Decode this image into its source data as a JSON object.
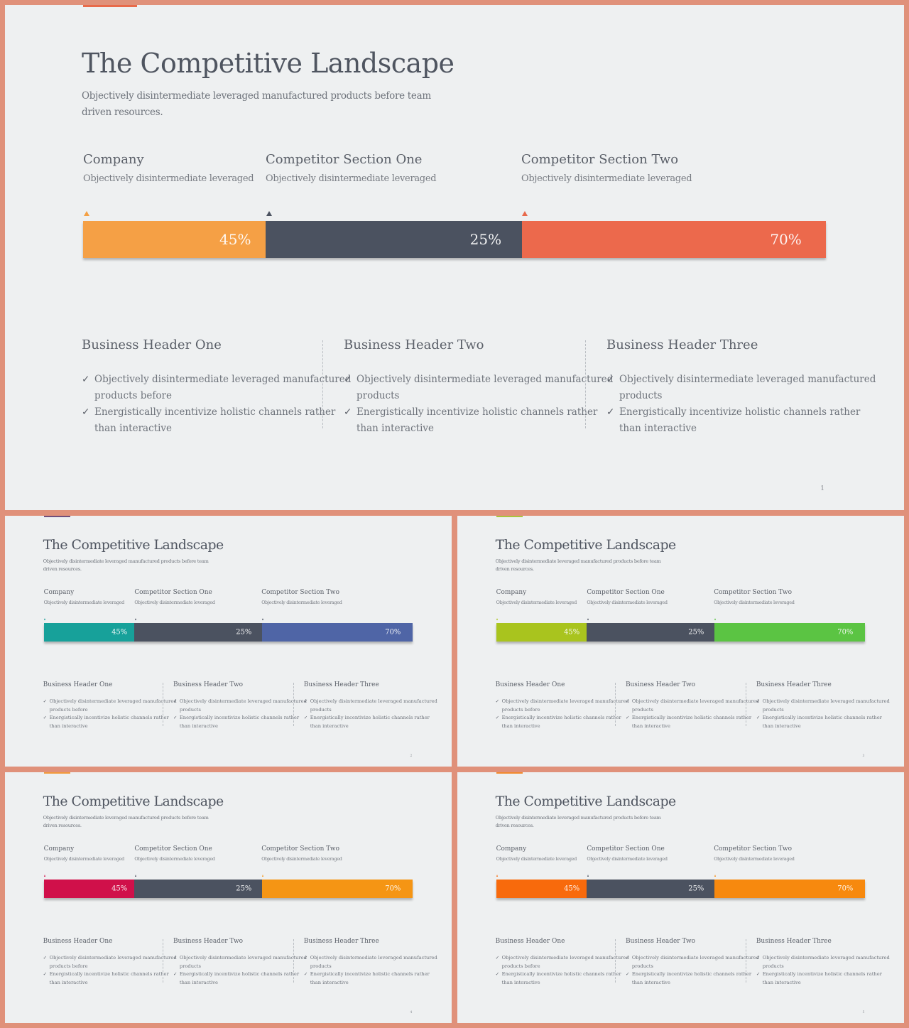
{
  "slides": [
    {
      "name": "slide-1",
      "accent": "#e86a4a",
      "title": "The Competitive Landscape",
      "subtitle_line1": "Objectively disintermediate leveraged manufactured products before team",
      "subtitle_line2": "driven resources.",
      "columns": [
        {
          "heading": "Company",
          "text": "Objectively disintermediate leveraged",
          "marker_color": "#f4a044"
        },
        {
          "heading": "Competitor Section One",
          "text": "Objectively disintermediate leveraged",
          "marker_color": "#4b5260"
        },
        {
          "heading": "Competitor Section Two",
          "text": "Objectively disintermediate leveraged",
          "marker_color": "#e8694b"
        }
      ],
      "bar": [
        {
          "label": "45%",
          "color": "#f5a045"
        },
        {
          "label": "25%",
          "color": "#4b5260"
        },
        {
          "label": "70%",
          "color": "#ec694c"
        }
      ],
      "business": [
        {
          "heading": "Business Header One",
          "item1_l1": "Objectively disintermediate leveraged manufactured",
          "item1_l2": "products before",
          "item2_l1": "Energistically incentivize holistic channels rather",
          "item2_l2": "than interactive"
        },
        {
          "heading": "Business Header Two",
          "item1_l1": "Objectively disintermediate leveraged manufactured",
          "item1_l2": "products",
          "item2_l1": "Energistically incentivize holistic channels rather",
          "item2_l2": "than interactive"
        },
        {
          "heading": "Business Header Three",
          "item1_l1": "Objectively disintermediate leveraged manufactured",
          "item1_l2": "products",
          "item2_l1": "Energistically incentivize holistic channels rather",
          "item2_l2": "than interactive"
        }
      ],
      "page_number": "1"
    },
    {
      "name": "slide-2",
      "accent": "#6f4f7c",
      "title": "The Competitive Landscape",
      "subtitle_line1": "Objectively disintermediate leveraged manufactured products before team",
      "subtitle_line2": "driven resources.",
      "columns": [
        {
          "heading": "Company",
          "text": "Objectively disintermediate leveraged",
          "marker_color": "#1a9e96"
        },
        {
          "heading": "Competitor Section One",
          "text": "Objectively disintermediate leveraged",
          "marker_color": "#4b5260"
        },
        {
          "heading": "Competitor Section Two",
          "text": "Objectively disintermediate leveraged",
          "marker_color": "#4b5260"
        }
      ],
      "bar": [
        {
          "label": "45%",
          "color": "#17a19a"
        },
        {
          "label": "25%",
          "color": "#4b5260"
        },
        {
          "label": "70%",
          "color": "#4f65a6"
        }
      ],
      "business": [
        {
          "heading": "Business Header One",
          "item1_l1": "Objectively disintermediate leveraged manufactured",
          "item1_l2": "products before",
          "item2_l1": "Energistically incentivize holistic channels rather",
          "item2_l2": "than interactive"
        },
        {
          "heading": "Business Header Two",
          "item1_l1": "Objectively disintermediate leveraged manufactured",
          "item1_l2": "products",
          "item2_l1": "Energistically incentivize holistic channels rather",
          "item2_l2": "than interactive"
        },
        {
          "heading": "Business Header Three",
          "item1_l1": "Objectively disintermediate leveraged manufactured",
          "item1_l2": "products",
          "item2_l1": "Energistically incentivize holistic channels rather",
          "item2_l2": "than interactive"
        }
      ],
      "page_number": "2"
    },
    {
      "name": "slide-3",
      "accent": "#a9c43c",
      "title": "The Competitive Landscape",
      "subtitle_line1": "Objectively disintermediate leveraged manufactured products before team",
      "subtitle_line2": "driven resources.",
      "columns": [
        {
          "heading": "Company",
          "text": "Objectively disintermediate leveraged",
          "marker_color": "#a9c41e"
        },
        {
          "heading": "Competitor Section One",
          "text": "Objectively disintermediate leveraged",
          "marker_color": "#4b5260"
        },
        {
          "heading": "Competitor Section Two",
          "text": "Objectively disintermediate leveraged",
          "marker_color": "#5bc443"
        }
      ],
      "bar": [
        {
          "label": "45%",
          "color": "#a9c41e"
        },
        {
          "label": "25%",
          "color": "#4b5260"
        },
        {
          "label": "70%",
          "color": "#5bc443"
        }
      ],
      "business": [
        {
          "heading": "Business Header One",
          "item1_l1": "Objectively disintermediate leveraged manufactured",
          "item1_l2": "products before",
          "item2_l1": "Energistically incentivize holistic channels rather",
          "item2_l2": "than interactive"
        },
        {
          "heading": "Business Header Two",
          "item1_l1": "Objectively disintermediate leveraged manufactured",
          "item1_l2": "products",
          "item2_l1": "Energistically incentivize holistic channels rather",
          "item2_l2": "than interactive"
        },
        {
          "heading": "Business Header Three",
          "item1_l1": "Objectively disintermediate leveraged manufactured",
          "item1_l2": "products",
          "item2_l1": "Energistically incentivize holistic channels rather",
          "item2_l2": "than interactive"
        }
      ],
      "page_number": "3"
    },
    {
      "name": "slide-4",
      "accent": "#f29a3d",
      "title": "The Competitive Landscape",
      "subtitle_line1": "Objectively disintermediate leveraged manufactured products before team",
      "subtitle_line2": "driven resources.",
      "columns": [
        {
          "heading": "Company",
          "text": "Objectively disintermediate leveraged",
          "marker_color": "#d0104a"
        },
        {
          "heading": "Competitor Section One",
          "text": "Objectively disintermediate leveraged",
          "marker_color": "#4b5260"
        },
        {
          "heading": "Competitor Section Two",
          "text": "Objectively disintermediate leveraged",
          "marker_color": "#f59514"
        }
      ],
      "bar": [
        {
          "label": "45%",
          "color": "#d0104a"
        },
        {
          "label": "25%",
          "color": "#4b5260"
        },
        {
          "label": "70%",
          "color": "#f59514"
        }
      ],
      "business": [
        {
          "heading": "Business Header One",
          "item1_l1": "Objectively disintermediate leveraged manufactured",
          "item1_l2": "products before",
          "item2_l1": "Energistically incentivize holistic channels rather",
          "item2_l2": "than interactive"
        },
        {
          "heading": "Business Header Two",
          "item1_l1": "Objectively disintermediate leveraged manufactured",
          "item1_l2": "products",
          "item2_l1": "Energistically incentivize holistic channels rather",
          "item2_l2": "than interactive"
        },
        {
          "heading": "Business Header Three",
          "item1_l1": "Objectively disintermediate leveraged manufactured",
          "item1_l2": "products",
          "item2_l1": "Energistically incentivize holistic channels rather",
          "item2_l2": "than interactive"
        }
      ],
      "page_number": "4"
    },
    {
      "name": "slide-5",
      "accent": "#f28a2e",
      "title": "The Competitive Landscape",
      "subtitle_line1": "Objectively disintermediate leveraged manufactured products before team",
      "subtitle_line2": "driven resources.",
      "columns": [
        {
          "heading": "Company",
          "text": "Objectively disintermediate leveraged",
          "marker_color": "#f86a0c"
        },
        {
          "heading": "Competitor Section One",
          "text": "Objectively disintermediate leveraged",
          "marker_color": "#4b5260"
        },
        {
          "heading": "Competitor Section Two",
          "text": "Objectively disintermediate leveraged",
          "marker_color": "#f7890e"
        }
      ],
      "bar": [
        {
          "label": "45%",
          "color": "#f86a0c"
        },
        {
          "label": "25%",
          "color": "#4b5260"
        },
        {
          "label": "70%",
          "color": "#f7890e"
        }
      ],
      "business": [
        {
          "heading": "Business Header One",
          "item1_l1": "Objectively disintermediate leveraged manufactured",
          "item1_l2": "products before",
          "item2_l1": "Energistically incentivize holistic channels rather",
          "item2_l2": "than interactive"
        },
        {
          "heading": "Business Header Two",
          "item1_l1": "Objectively disintermediate leveraged manufactured",
          "item1_l2": "products",
          "item2_l1": "Energistically incentivize holistic channels rather",
          "item2_l2": "than interactive"
        },
        {
          "heading": "Business Header Three",
          "item1_l1": "Objectively disintermediate leveraged manufactured",
          "item1_l2": "products",
          "item2_l1": "Energistically incentivize holistic channels rather",
          "item2_l2": "than interactive"
        }
      ],
      "page_number": "5"
    }
  ]
}
